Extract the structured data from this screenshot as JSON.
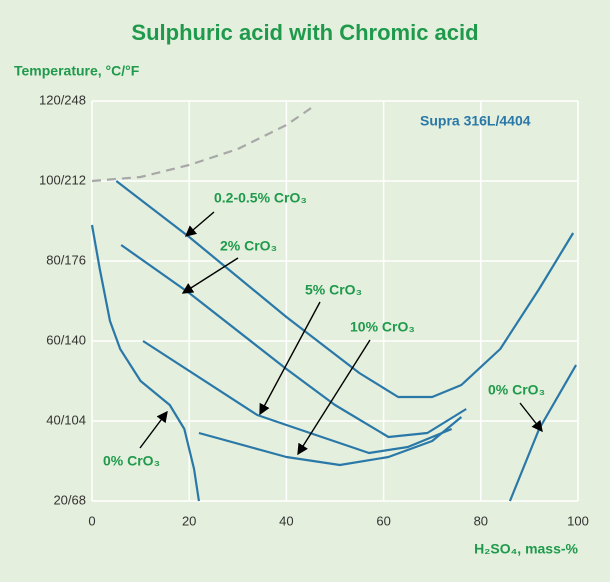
{
  "chart_data": {
    "type": "line",
    "title": "Sulphuric acid with Chromic acid",
    "y_label": "Temperature, °C/°F",
    "x_label": "H₂SO₄, mass-%",
    "note": "Supra 316L/4404",
    "xlim": [
      0,
      100
    ],
    "xticks": [
      0,
      20,
      40,
      60,
      80,
      100
    ],
    "ylim": [
      20,
      120
    ],
    "yticks": [
      {
        "value": 20,
        "label": "20/68"
      },
      {
        "value": 40,
        "label": "40/104"
      },
      {
        "value": 60,
        "label": "60/140"
      },
      {
        "value": 80,
        "label": "80/176"
      },
      {
        "value": 100,
        "label": "100/212"
      },
      {
        "value": 120,
        "label": "120/248"
      }
    ],
    "grid": true,
    "series": [
      {
        "color": "#a8a8a8",
        "dashed": true,
        "x": [
          0,
          10,
          20,
          30,
          40,
          46
        ],
        "values": [
          100,
          101,
          104,
          108,
          114,
          119
        ]
      },
      {
        "name": "0.2-0.5% CrO₃",
        "color": "#2a78a8",
        "x": [
          5,
          20,
          40,
          55,
          63,
          70,
          76,
          84,
          92,
          99
        ],
        "values": [
          100,
          86,
          66,
          52,
          46,
          46,
          49,
          58,
          73,
          87
        ]
      },
      {
        "name": "2% CrO₃",
        "color": "#2a78a8",
        "x": [
          6,
          20,
          40,
          50,
          61,
          69,
          77
        ],
        "values": [
          84,
          72,
          53,
          44,
          36,
          37,
          43
        ]
      },
      {
        "name": "5% CrO₃",
        "color": "#2a78a8",
        "x": [
          10.5,
          34,
          40,
          57,
          65,
          74
        ],
        "values": [
          60,
          41.5,
          39,
          32,
          33.5,
          38
        ]
      },
      {
        "name": "10% CrO₃",
        "color": "#2a78a8",
        "x": [
          22,
          40,
          51,
          61,
          70,
          76
        ],
        "values": [
          37,
          31,
          29,
          31,
          35,
          41
        ]
      },
      {
        "name": "0% CrO₃",
        "color": "#2a78a8",
        "x": [
          0,
          1.6,
          3.7,
          5.8,
          10,
          16,
          19,
          21,
          22,
          null,
          86,
          92,
          99.6
        ],
        "values": [
          89,
          78,
          65,
          58,
          50,
          44,
          38,
          28,
          20,
          null,
          20,
          38,
          54
        ]
      }
    ]
  }
}
